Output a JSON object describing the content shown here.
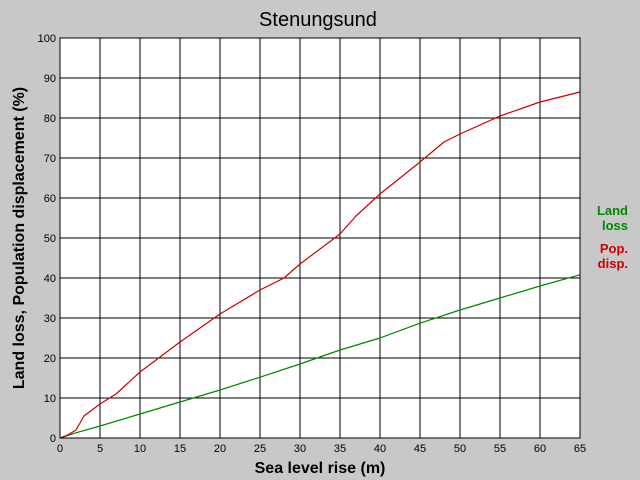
{
  "chart_data": {
    "type": "line",
    "title": "Stenungsund",
    "xlabel": "Sea level rise (m)",
    "ylabel": "Land loss, Population displacement (%)",
    "xlim": [
      0,
      65
    ],
    "ylim": [
      0,
      100
    ],
    "x_ticks": [
      "0",
      "5",
      "10",
      "15",
      "20",
      "25",
      "30",
      "35",
      "40",
      "45",
      "50",
      "55",
      "60",
      "65"
    ],
    "y_ticks": [
      "0",
      "10",
      "20",
      "30",
      "40",
      "50",
      "60",
      "70",
      "80",
      "90",
      "100"
    ],
    "grid": true,
    "legend_position": "right",
    "series": [
      {
        "key": "land",
        "name": "Land loss",
        "legend_lines": [
          "Land",
          "loss"
        ],
        "color": "#008800",
        "x": [
          0,
          2,
          5,
          10,
          15,
          20,
          25,
          30,
          35,
          40,
          45,
          50,
          55,
          60,
          65
        ],
        "y": [
          0,
          1.3,
          3,
          6,
          9,
          12,
          15.2,
          18.5,
          22,
          25,
          28.7,
          32,
          35,
          38,
          40.8
        ]
      },
      {
        "key": "pop",
        "name": "Pop. disp.",
        "legend_lines": [
          "Pop.",
          "disp."
        ],
        "color": "#cc0000",
        "x": [
          0,
          1,
          2,
          3,
          5,
          7,
          10,
          15,
          20,
          25,
          28,
          30,
          35,
          37,
          40,
          45,
          48,
          50,
          55,
          60,
          65
        ],
        "y": [
          0,
          0.8,
          2,
          5.5,
          8.5,
          11,
          16.5,
          24,
          31,
          37,
          40,
          43.5,
          51,
          55.5,
          61,
          69,
          74,
          76,
          80.5,
          84,
          86.5
        ]
      }
    ]
  }
}
